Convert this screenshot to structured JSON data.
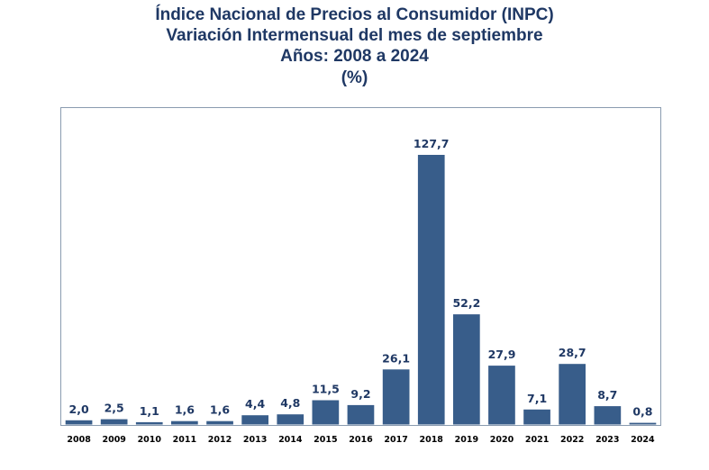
{
  "chart_data": {
    "type": "bar",
    "title": [
      "Índice Nacional de Precios al Consumidor (INPC)",
      "Variación Intermensual del mes de septiembre",
      "Años: 2008 a 2024",
      "(%)"
    ],
    "xlabel": "",
    "ylabel": "",
    "categories": [
      "2008",
      "2009",
      "2010",
      "2011",
      "2012",
      "2013",
      "2014",
      "2015",
      "2016",
      "2017",
      "2018",
      "2019",
      "2020",
      "2021",
      "2022",
      "2023",
      "2024"
    ],
    "values": [
      2.0,
      2.5,
      1.1,
      1.6,
      1.6,
      4.4,
      4.8,
      11.5,
      9.2,
      26.1,
      127.7,
      52.2,
      27.9,
      7.1,
      28.7,
      8.7,
      0.8
    ],
    "labels": [
      "2,0",
      "2,5",
      "1,1",
      "1,6",
      "1,6",
      "4,4",
      "4,8",
      "11,5",
      "9,2",
      "26,1",
      "127,7",
      "52,2",
      "27,9",
      "7,1",
      "28,7",
      "8,7",
      "0,8"
    ],
    "ylim": [
      0,
      145
    ],
    "grid": false,
    "legend": "none",
    "colors": {
      "bar": "#385d8a",
      "title": "#1f3864",
      "label": "#1f3864",
      "frame": "#7f93a8"
    }
  }
}
